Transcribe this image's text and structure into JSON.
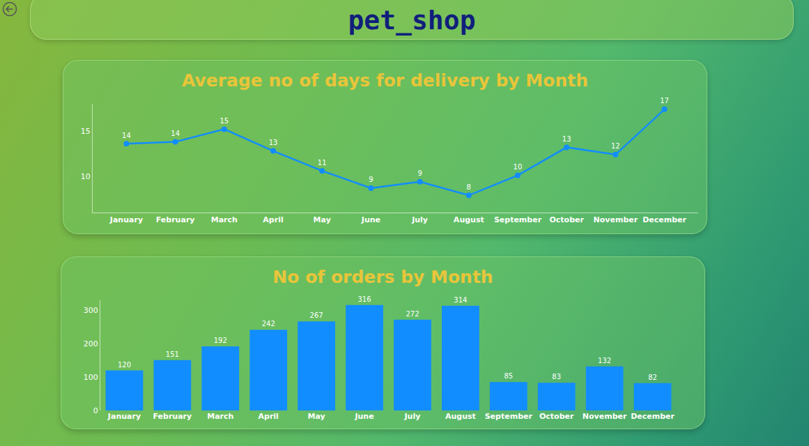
{
  "page_title": "pet_shop",
  "chart_data": [
    {
      "type": "line",
      "title": "Average no of days for delivery by Month",
      "categories": [
        "January",
        "February",
        "March",
        "April",
        "May",
        "June",
        "July",
        "August",
        "September",
        "October",
        "November",
        "December"
      ],
      "values": [
        13.6,
        13.8,
        15.2,
        12.8,
        10.6,
        8.7,
        9.4,
        7.9,
        10.1,
        13.2,
        12.4,
        17.4
      ],
      "value_labels": [
        "14",
        "14",
        "15",
        "13",
        "11",
        "9",
        "9",
        "8",
        "10",
        "13",
        "12",
        "17"
      ],
      "color": "#118dff",
      "marker": "circle",
      "ylim": [
        6,
        18
      ],
      "yticks": [
        10,
        15
      ],
      "grid": false,
      "data_labels": true
    },
    {
      "type": "bar",
      "title": "No of orders by Month",
      "categories": [
        "January",
        "February",
        "March",
        "April",
        "May",
        "June",
        "July",
        "August",
        "September",
        "October",
        "November",
        "December"
      ],
      "values": [
        120,
        151,
        192,
        242,
        267,
        316,
        272,
        314,
        85,
        83,
        132,
        82
      ],
      "color": "#118dff",
      "ylim": [
        0,
        330
      ],
      "yticks": [
        0,
        100,
        200,
        300
      ],
      "grid": false,
      "data_labels": true
    }
  ]
}
